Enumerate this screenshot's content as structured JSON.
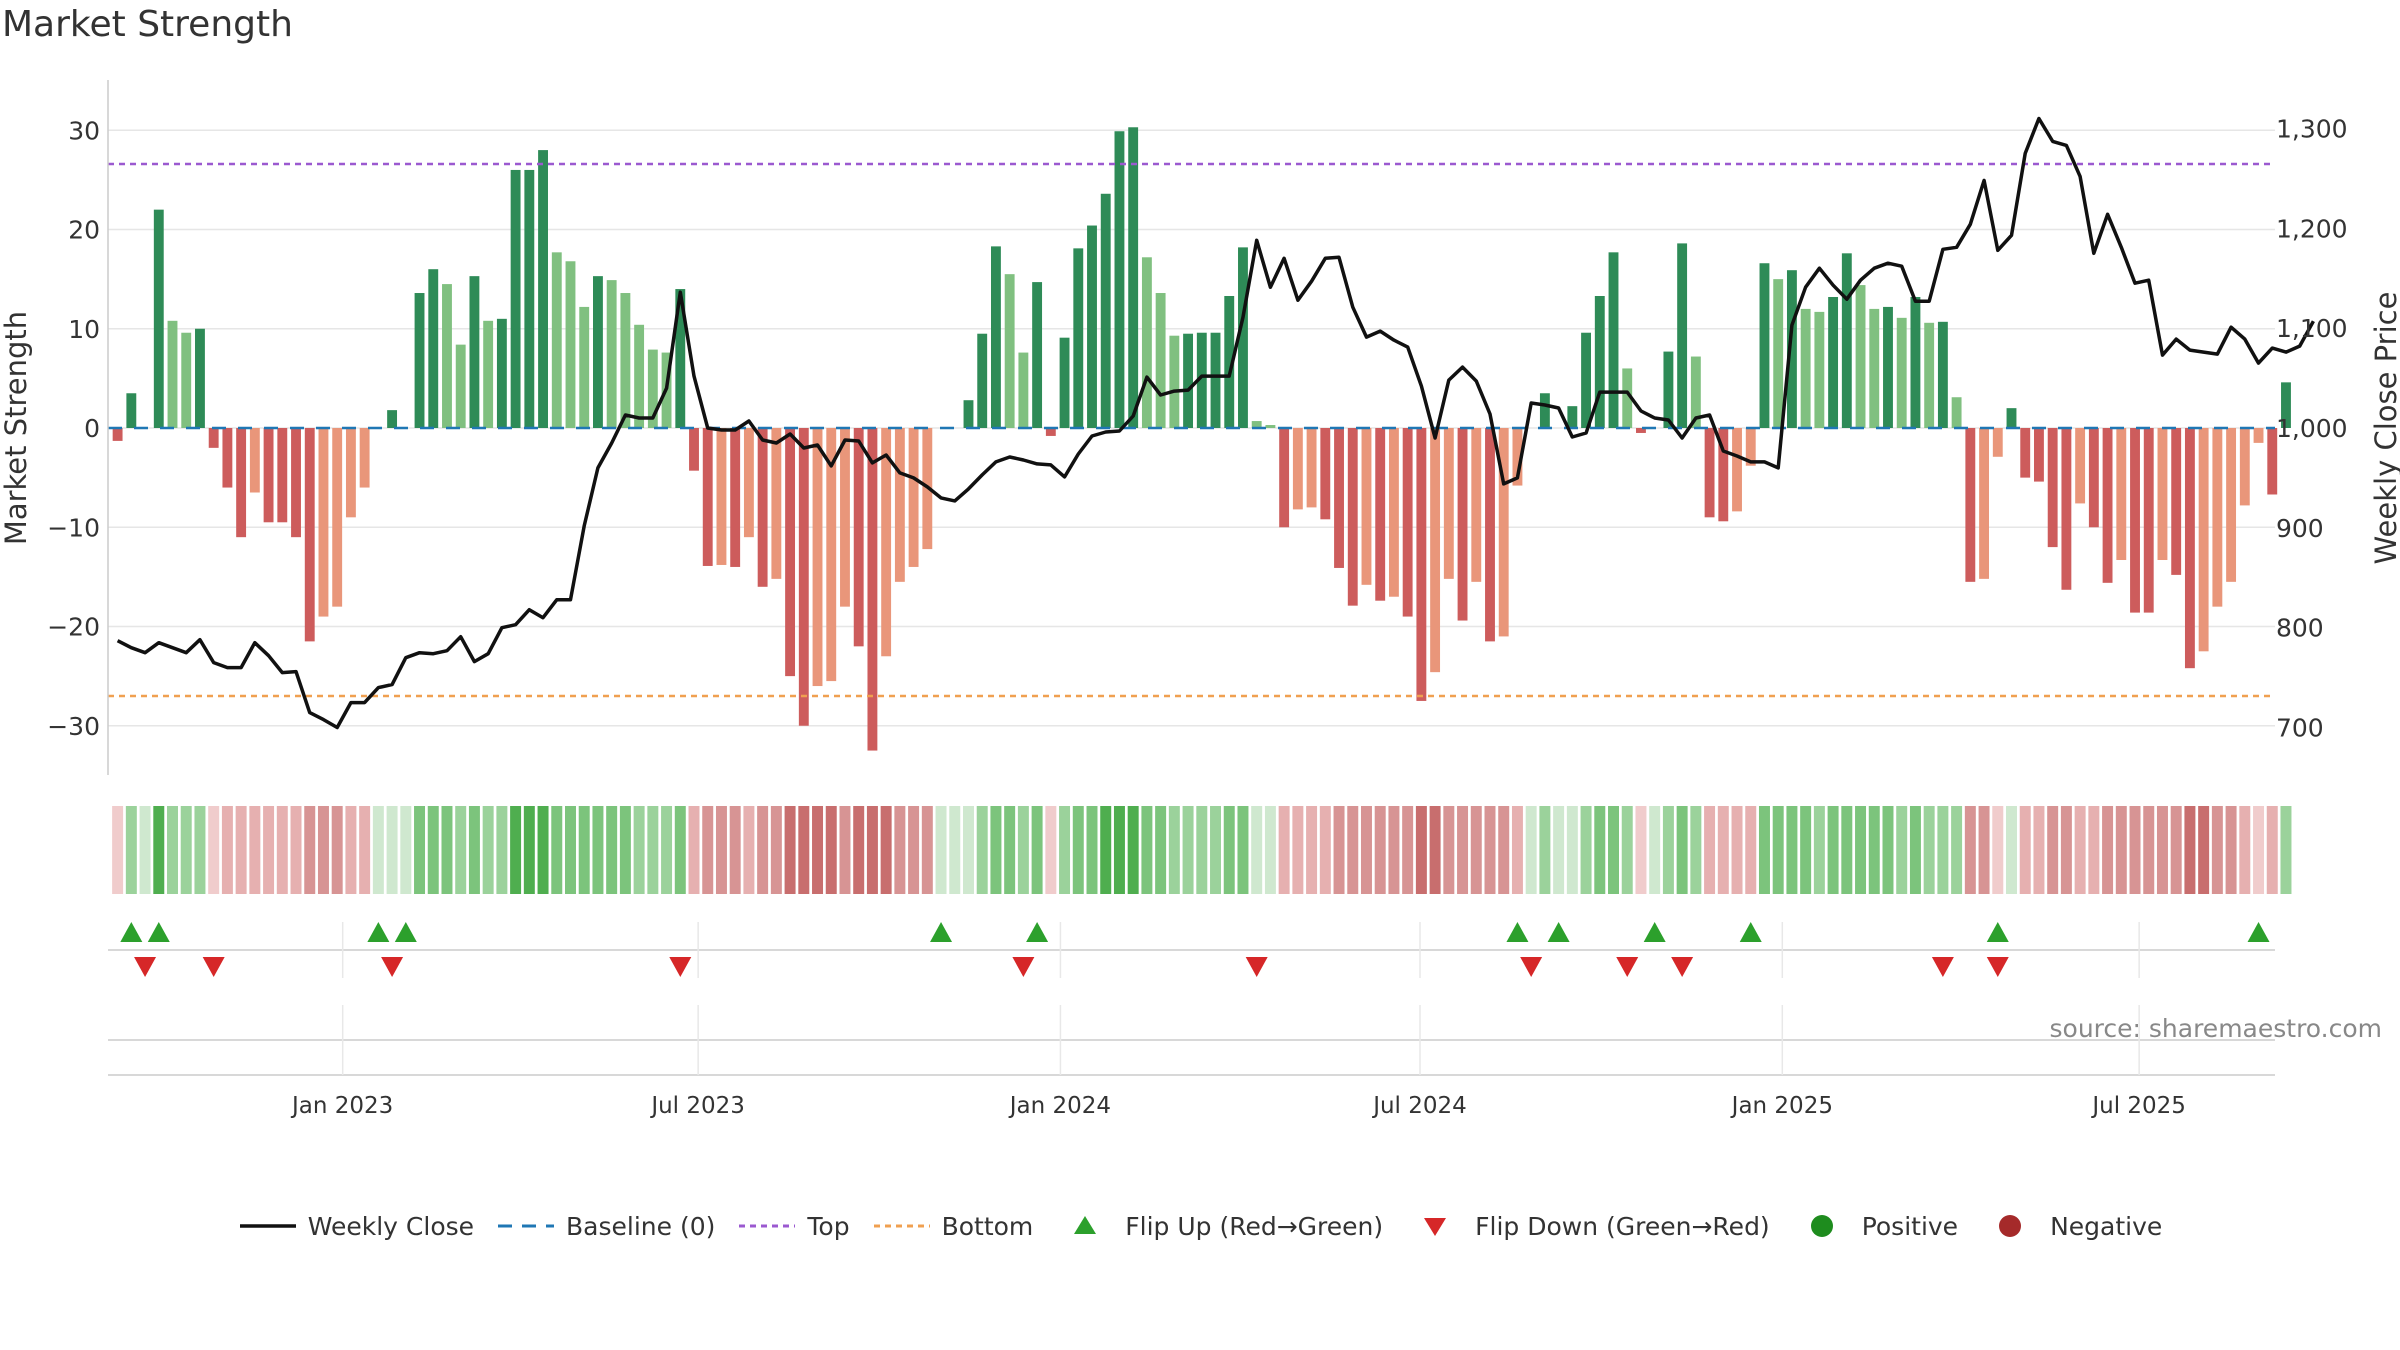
{
  "title": "Market Strength",
  "source": "source: sharemaestro.com",
  "colors": {
    "green_dark": "#2e8b57",
    "green_light": "#80c080",
    "red_dark": "#cd5c5c",
    "red_light": "#e9967a",
    "close_line": "#111111",
    "baseline": "#1f77b4",
    "top_line": "#9b59d0",
    "bottom_line": "#f0a050",
    "flip_up": "#2ca02c",
    "flip_down": "#d62728",
    "positive": "#1e8c1e",
    "negative": "#a52a2a"
  },
  "legend": [
    {
      "key": "close",
      "label": "Weekly Close"
    },
    {
      "key": "baseline",
      "label": "Baseline (0)"
    },
    {
      "key": "top",
      "label": "Top"
    },
    {
      "key": "bottom",
      "label": "Bottom"
    },
    {
      "key": "flipup",
      "label": "Flip Up (Red→Green)"
    },
    {
      "key": "flipdown",
      "label": "Flip Down (Green→Red)"
    },
    {
      "key": "positive",
      "label": "Positive"
    },
    {
      "key": "negative",
      "label": "Negative"
    }
  ],
  "chart_data": {
    "type": "bar",
    "title": "Market Strength",
    "ylabel": "Market Strength",
    "y2label": "Weekly Close Price",
    "ylim": [
      -35,
      35
    ],
    "y2lim": [
      675,
      1325
    ],
    "yticks": [
      30,
      20,
      10,
      0,
      -10,
      -20,
      -30
    ],
    "ytick_labels": [
      "30",
      "20",
      "10",
      "0",
      "−10",
      "−20",
      "−30"
    ],
    "y2ticks": [
      1300,
      1200,
      1100,
      1000,
      900,
      800,
      700
    ],
    "y2tick_labels": [
      "1,300",
      "1,200",
      "1,100",
      "1,000",
      "900",
      "800",
      "700"
    ],
    "top_level": 26.6,
    "bottom_level": -27,
    "start_date": "2022-09-05",
    "x_range_weeks": [
      -0.7,
      157.2
    ],
    "xticks": [
      {
        "label": "Jan 2023",
        "week": 16.4
      },
      {
        "label": "Jul 2023",
        "week": 42.3
      },
      {
        "label": "Jan 2024",
        "week": 68.7
      },
      {
        "label": "Jul 2024",
        "week": 94.9
      },
      {
        "label": "Jan 2025",
        "week": 121.3
      },
      {
        "label": "Jul 2025",
        "week": 147.3
      }
    ],
    "strength": [
      -1.3,
      3.5,
      0,
      22,
      10.8,
      9.6,
      10,
      -2,
      -6,
      -11,
      -6.5,
      -9.5,
      -9.5,
      -11,
      -21.5,
      -19,
      -18,
      -9,
      -6,
      0,
      1.8,
      0,
      13.6,
      16,
      14.5,
      8.4,
      15.3,
      10.8,
      11,
      26,
      26,
      28,
      17.7,
      16.8,
      12.2,
      15.3,
      14.9,
      13.6,
      10.4,
      7.9,
      7.6,
      14,
      -4.3,
      -13.9,
      -13.8,
      -14,
      -11,
      -16,
      -15.2,
      -25,
      -30,
      -26,
      -25.5,
      -18,
      -22,
      -32.5,
      -23,
      -15.5,
      -14,
      -12.2,
      0,
      0,
      2.8,
      9.5,
      18.3,
      15.5,
      7.6,
      14.7,
      -0.8,
      9.1,
      18.1,
      20.4,
      23.6,
      29.9,
      30.3,
      17.2,
      13.6,
      9.3,
      9.5,
      9.6,
      9.6,
      13.3,
      18.2,
      0.7,
      0.3,
      -10,
      -8.2,
      -8,
      -9.2,
      -14.1,
      -17.9,
      -15.8,
      -17.4,
      -17,
      -19,
      -27.5,
      -24.6,
      -15.2,
      -19.4,
      -15.5,
      -21.5,
      -21,
      -5.8,
      0,
      3.5,
      0,
      2.2,
      9.6,
      13.3,
      17.7,
      6,
      -0.5,
      0,
      7.7,
      18.6,
      7.2,
      -9,
      -9.4,
      -8.4,
      -3.8,
      16.6,
      15,
      15.9,
      12,
      11.7,
      13.2,
      17.6,
      14.4,
      12,
      12.2,
      11.1,
      13.2,
      10.6,
      10.7,
      3.1,
      -15.5,
      -15.2,
      -2.9,
      2,
      -5,
      -5.4,
      -12,
      -16.3,
      -7.6,
      -10,
      -15.6,
      -13.3,
      -18.6,
      -18.6,
      -13.3,
      -14.8,
      -24.2,
      -22.5,
      -18,
      -15.5,
      -7.8,
      -1.5,
      -6.7,
      4.6
    ],
    "close": [
      787,
      780,
      775,
      785,
      780,
      775,
      788,
      765,
      760,
      760,
      785,
      772,
      755,
      756,
      715,
      708,
      700,
      725,
      725,
      740,
      743,
      770,
      775,
      774,
      777,
      791,
      766,
      774,
      800,
      803,
      818,
      810,
      828,
      828,
      902,
      960,
      985,
      1013,
      1010,
      1010,
      1040,
      1136,
      1052,
      1000,
      998,
      998,
      1007,
      988,
      985,
      994,
      980,
      983,
      962,
      988,
      987,
      965,
      973,
      955,
      950,
      941,
      930,
      927,
      939,
      953,
      966,
      971,
      968,
      964,
      963,
      951,
      974,
      992,
      996,
      997,
      1012,
      1051,
      1033,
      1037,
      1038,
      1052,
      1052,
      1052,
      1111,
      1188,
      1141,
      1170,
      1128,
      1147,
      1170,
      1171,
      1121,
      1091,
      1097,
      1088,
      1081,
      1042,
      990,
      1048,
      1061,
      1047,
      1014,
      944,
      950,
      1025,
      1023,
      1020,
      991,
      995,
      1036,
      1036,
      1036,
      1017,
      1010,
      1008,
      990,
      1010,
      1013,
      977,
      972,
      966,
      966,
      960,
      1103,
      1141,
      1160,
      1143,
      1129,
      1148,
      1160,
      1165,
      1162,
      1127,
      1127,
      1179,
      1181,
      1204,
      1248,
      1178,
      1193,
      1275,
      1310,
      1287,
      1283,
      1252,
      1175,
      1214,
      1181,
      1145,
      1148,
      1073,
      1089,
      1078,
      1076,
      1074,
      1101,
      1089,
      1065,
      1080,
      1076,
      1082,
      1107
    ],
    "flips_up_weeks": [
      1,
      3,
      19,
      21,
      60,
      67,
      102,
      105,
      112,
      119,
      137,
      156
    ],
    "flips_down_weeks": [
      2,
      7,
      20,
      41,
      66,
      83,
      103,
      110,
      114,
      133,
      137
    ],
    "indicator_rows": {
      "main": "multi-color week strip",
      "flip_up_row": "upward triangles",
      "flip_down_row": "downward triangles"
    }
  }
}
